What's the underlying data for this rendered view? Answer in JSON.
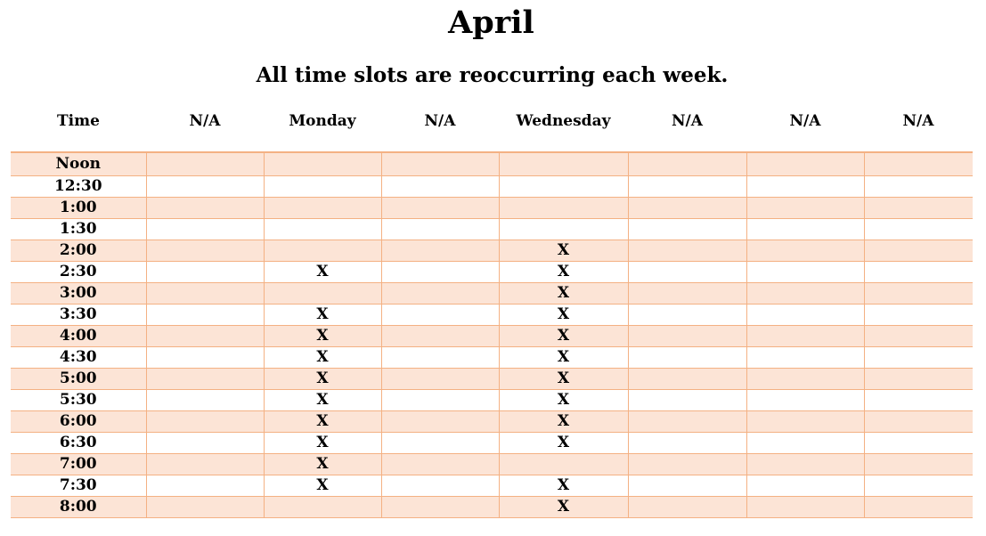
{
  "title": "April",
  "subtitle": "All time slots are reoccurring each week.",
  "columns": [
    "Time",
    "N/A",
    "Monday",
    "N/A",
    "Wednesday",
    "N/A",
    "N/A",
    "N/A"
  ],
  "rows": [
    {
      "time": "Noon",
      "cells": [
        "",
        "",
        "",
        "",
        "",
        "",
        ""
      ]
    },
    {
      "time": "12:30",
      "cells": [
        "",
        "",
        "",
        "",
        "",
        "",
        ""
      ]
    },
    {
      "time": "1:00",
      "cells": [
        "",
        "",
        "",
        "",
        "",
        "",
        ""
      ]
    },
    {
      "time": "1:30",
      "cells": [
        "",
        "",
        "",
        "",
        "",
        "",
        ""
      ]
    },
    {
      "time": "2:00",
      "cells": [
        "",
        "",
        "",
        "X",
        "",
        "",
        ""
      ]
    },
    {
      "time": "2:30",
      "cells": [
        "",
        "X",
        "",
        "X",
        "",
        "",
        ""
      ]
    },
    {
      "time": "3:00",
      "cells": [
        "",
        "",
        "",
        "X",
        "",
        "",
        ""
      ]
    },
    {
      "time": "3:30",
      "cells": [
        "",
        "X",
        "",
        "X",
        "",
        "",
        ""
      ]
    },
    {
      "time": "4:00",
      "cells": [
        "",
        "X",
        "",
        "X",
        "",
        "",
        ""
      ]
    },
    {
      "time": "4:30",
      "cells": [
        "",
        "X",
        "",
        "X",
        "",
        "",
        ""
      ]
    },
    {
      "time": "5:00",
      "cells": [
        "",
        "X",
        "",
        "X",
        "",
        "",
        ""
      ]
    },
    {
      "time": "5:30",
      "cells": [
        "",
        "X",
        "",
        "X",
        "",
        "",
        ""
      ]
    },
    {
      "time": "6:00",
      "cells": [
        "",
        "X",
        "",
        "X",
        "",
        "",
        ""
      ]
    },
    {
      "time": "6:30",
      "cells": [
        "",
        "X",
        "",
        "X",
        "",
        "",
        ""
      ]
    },
    {
      "time": "7:00",
      "cells": [
        "",
        "X",
        "",
        "",
        "",
        "",
        ""
      ]
    },
    {
      "time": "7:30",
      "cells": [
        "",
        "X",
        "",
        "X",
        "",
        "",
        ""
      ]
    },
    {
      "time": "8:00",
      "cells": [
        "",
        "",
        "",
        "X",
        "",
        "",
        ""
      ]
    }
  ],
  "colors": {
    "band": "#fce4d6",
    "border": "#f4b183"
  }
}
